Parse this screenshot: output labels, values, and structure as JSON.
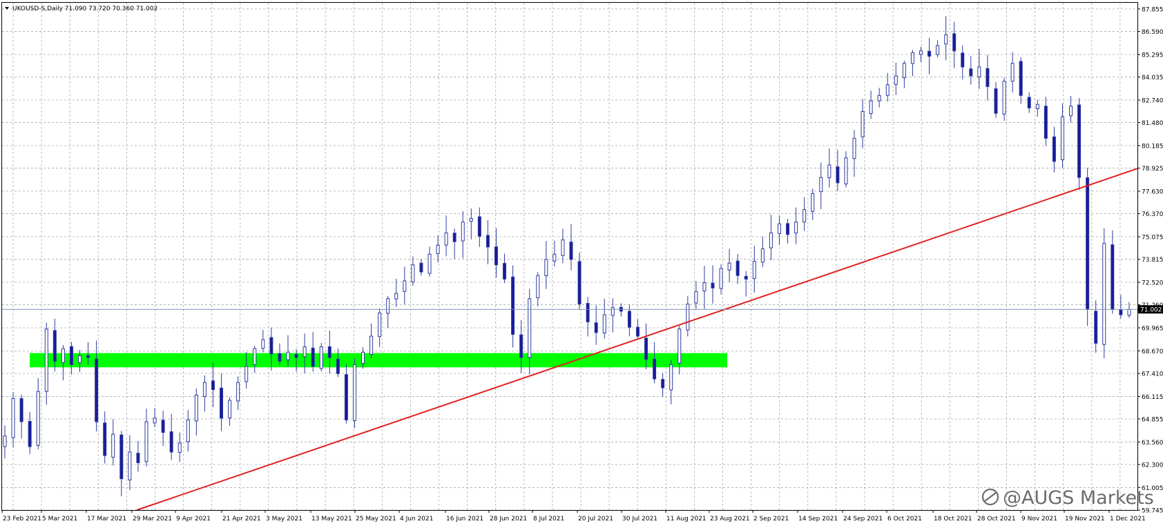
{
  "window": {
    "symbol": "UKOUSD-S",
    "timeframe": "Daily",
    "ohlc_text": "71.090 73.720 70.360 71.002",
    "header_text": "UKOUSD-S,Daily  71.090 73.720 70.360 71.002"
  },
  "watermark": "@AUGS Markets",
  "colors": {
    "background": "#ffffff",
    "grid": "#a8a8a8",
    "bull_candle": "#ffffff",
    "bull_outline": "#2b3a9e",
    "bear_candle": "#1a1a9a",
    "trendline": "#e02020",
    "zone": "#00ff00",
    "price_line": "#7a8fb8",
    "price_tag_bg": "#000000",
    "price_tag_text": "#ffffff"
  },
  "chart_data": {
    "type": "candlestick",
    "title": "UKOUSD-S,Daily",
    "xlabel": "",
    "ylabel": "",
    "ylim": [
      59.745,
      88.2
    ],
    "grid": true,
    "y_ticks": [
      "87.855",
      "86.590",
      "85.295",
      "84.035",
      "82.740",
      "81.480",
      "80.185",
      "78.925",
      "77.630",
      "76.370",
      "75.075",
      "73.815",
      "72.520",
      "71.260",
      "69.965",
      "68.670",
      "67.410",
      "66.115",
      "64.855",
      "63.560",
      "62.300",
      "61.005",
      "59.745"
    ],
    "x_tick_labels": [
      "23 Feb 2021",
      "5 Mar 2021",
      "17 Mar 2021",
      "29 Mar 2021",
      "9 Apr 2021",
      "21 Apr 2021",
      "3 May 2021",
      "13 May 2021",
      "25 May 2021",
      "4 Jun 2021",
      "16 Jun 2021",
      "28 Jun 2021",
      "8 Jul 2021",
      "20 Jul 2021",
      "30 Jul 2021",
      "11 Aug 2021",
      "23 Aug 2021",
      "2 Sep 2021",
      "14 Sep 2021",
      "24 Sep 2021",
      "6 Oct 2021",
      "18 Oct 2021",
      "28 Oct 2021",
      "9 Nov 2021",
      "19 Nov 2021",
      "1 Dec 2021"
    ],
    "last_price": "71.002",
    "close_path": [
      63.9,
      66.0,
      64.7,
      63.3,
      66.4,
      69.9,
      68.1,
      68.8,
      67.9,
      68.4,
      68.3,
      64.7,
      62.8,
      64.0,
      61.5,
      63.0,
      62.4,
      64.7,
      64.9,
      64.1,
      63.0,
      63.5,
      64.8,
      66.2,
      66.9,
      66.5,
      64.9,
      65.9,
      66.9,
      67.8,
      68.8,
      69.3,
      68.5,
      68.1,
      68.6,
      68.3,
      68.9,
      67.8,
      68.9,
      68.3,
      67.4,
      64.8,
      67.9,
      68.6,
      69.5,
      70.8,
      71.6,
      71.9,
      72.6,
      73.5,
      73.1,
      74.1,
      74.6,
      75.3,
      74.8,
      75.9,
      76.1,
      75.1,
      74.5,
      73.5,
      72.7,
      69.6,
      68.3,
      71.6,
      72.9,
      73.8,
      74.1,
      74.9,
      73.8,
      71.3,
      70.3,
      69.7,
      70.7,
      71.1,
      70.9,
      70.0,
      69.5,
      68.2,
      67.1,
      66.6,
      67.9,
      69.9,
      71.3,
      72.0,
      72.5,
      72.2,
      73.3,
      73.6,
      72.9,
      72.7,
      73.7,
      74.4,
      75.3,
      75.8,
      75.2,
      75.9,
      76.6,
      77.5,
      78.4,
      79.1,
      78.1,
      79.5,
      80.6,
      82.1,
      82.7,
      83.0,
      83.6,
      84.1,
      84.8,
      85.4,
      85.5,
      85.2,
      85.8,
      86.4,
      85.5,
      84.6,
      84.1,
      84.6,
      83.5,
      82.0,
      83.8,
      84.8,
      83.0,
      82.3,
      82.5,
      80.6,
      79.3,
      81.8,
      82.4,
      78.4,
      71.0,
      69.1,
      74.7,
      71.0,
      70.7,
      71.0
    ],
    "trendline": {
      "from": {
        "date": "29 Mar 2021",
        "price": 59.745
      },
      "to": {
        "date": "2 Dec 2021",
        "price": 78.9
      }
    },
    "zone": {
      "from": "26 Feb 2021",
      "to": "25 Aug 2021",
      "low": 67.75,
      "high": 68.55
    }
  }
}
